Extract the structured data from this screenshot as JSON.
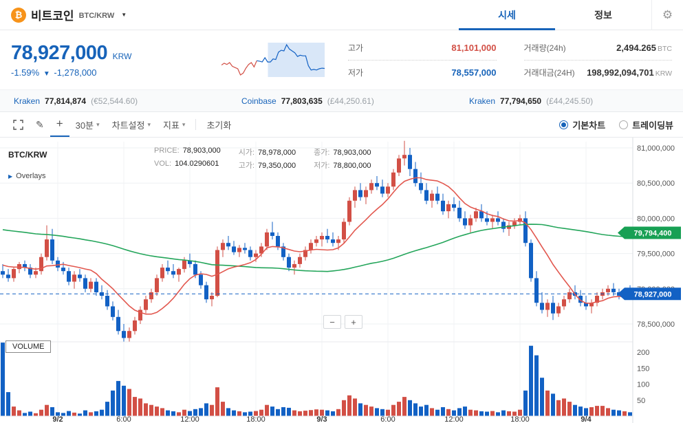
{
  "icons": {
    "bitcoin": "₿",
    "gear": "⚙",
    "dropdown_caret": "▼",
    "select_caret": "▾",
    "pencil": "✎",
    "plus": "+",
    "overlays_triangle": "▶"
  },
  "header": {
    "coin_name": "비트코인",
    "pair": "BTC/KRW",
    "tabs": [
      {
        "label": "시세"
      },
      {
        "label": "정보"
      }
    ]
  },
  "price": {
    "current": "78,927,000",
    "currency": "KRW",
    "change_percent": "-1.59%",
    "direction": "▼",
    "change_amount": "-1,278,000"
  },
  "stats": {
    "high_label": "고가",
    "high": "81,101,000",
    "low_label": "저가",
    "low": "78,557,000",
    "volume_label": "거래량(24h)",
    "volume": "2,494.265",
    "volume_unit": "BTC",
    "value_label": "거래대금(24H)",
    "value": "198,992,094,701",
    "value_unit": "KRW"
  },
  "tickers": [
    {
      "exchange": "Kraken",
      "price": "77,814,874",
      "converted": "(€52,544.60)"
    },
    {
      "exchange": "Coinbase",
      "price": "77,803,635",
      "converted": "(£44,250.61)"
    },
    {
      "exchange": "Kraken",
      "price": "77,794,650",
      "converted": "(£44,245.50)"
    }
  ],
  "toolbar": {
    "interval": "30분",
    "chart_settings": "차트설정",
    "indicators": "지표",
    "reset": "초기화",
    "chart_type_basic": "기본차트",
    "chart_type_tradingview": "트레이딩뷰",
    "zoom_out": "−",
    "zoom_in": "+"
  },
  "chart_info": {
    "pair": "BTC/KRW",
    "overlays": "Overlays",
    "price_label": "PRICE:",
    "price": "78,903,000",
    "open_label": "시가:",
    "open": "78,978,000",
    "close_label": "종가:",
    "close": "78,903,000",
    "vol_label": "VOL:",
    "vol": "104.0290601",
    "high_label": "고가:",
    "high": "79,350,000",
    "low_label": "저가:",
    "low": "78,800,000",
    "volume_pane_label": "VOLUME"
  },
  "chart_data": {
    "type": "candlestick",
    "interval": "30m",
    "price_unit": "KRW, values in thousands",
    "colors": {
      "up": "#d24f45",
      "down": "#1261c4",
      "ma_fast": "#e2574e",
      "ma_slow": "#23a55a",
      "grid": "#eef0f3",
      "axis_text": "#555"
    },
    "y_ticks": [
      [
        "81,000,000",
        81000
      ],
      [
        "80,500,000",
        80500
      ],
      [
        "80,000,000",
        80000
      ],
      [
        "79,500,000",
        79500
      ],
      [
        "79,000,000",
        79000
      ],
      [
        "78,500,000",
        78500
      ]
    ],
    "volume_ticks": [
      [
        "200",
        200
      ],
      [
        "150",
        150
      ],
      [
        "100",
        100
      ],
      [
        "50",
        50
      ]
    ],
    "x_ticks": [
      [
        "9/2",
        10
      ],
      [
        "6:00",
        22
      ],
      [
        "12:00",
        34
      ],
      [
        "18:00",
        46
      ],
      [
        "9/3",
        58
      ],
      [
        "6:00",
        70
      ],
      [
        "12:00",
        82
      ],
      [
        "18:00",
        94
      ],
      [
        "9/4",
        106
      ]
    ],
    "tags": {
      "ma": {
        "label": "79,794,400",
        "price": 79794.4,
        "color": "#18a054"
      },
      "current": {
        "label": "78,927,000",
        "price": 78927,
        "color": "#1261c4"
      }
    },
    "ma": {
      "fast_period": 10,
      "fast_start": 79350,
      "slow_period": 60,
      "slow_start": 79850
    },
    "candles": [
      [
        79250,
        79350,
        79150,
        79200,
        230
      ],
      [
        79200,
        79280,
        79100,
        79150,
        75
      ],
      [
        79150,
        79300,
        79100,
        79280,
        30
      ],
      [
        79280,
        79380,
        79220,
        79350,
        18
      ],
      [
        79350,
        79400,
        79250,
        79300,
        10
      ],
      [
        79300,
        79350,
        79150,
        79200,
        14
      ],
      [
        79200,
        79300,
        79150,
        79250,
        9
      ],
      [
        79250,
        79500,
        79200,
        79450,
        20
      ],
      [
        79450,
        79900,
        79400,
        79700,
        35
      ],
      [
        79700,
        79850,
        79350,
        79400,
        28
      ],
      [
        79400,
        79450,
        79250,
        79300,
        12
      ],
      [
        79300,
        79380,
        79200,
        79250,
        10
      ],
      [
        79250,
        79300,
        79050,
        79100,
        16
      ],
      [
        79100,
        79250,
        79000,
        79200,
        11
      ],
      [
        79200,
        79280,
        79100,
        79150,
        8
      ],
      [
        79150,
        79200,
        78950,
        79000,
        18
      ],
      [
        79000,
        79150,
        78950,
        79100,
        12
      ],
      [
        79100,
        79150,
        78900,
        78950,
        15
      ],
      [
        78950,
        79050,
        78850,
        78900,
        20
      ],
      [
        78900,
        78980,
        78700,
        78750,
        45
      ],
      [
        78750,
        78820,
        78550,
        78600,
        80
      ],
      [
        78600,
        78700,
        78350,
        78400,
        110
      ],
      [
        78400,
        78500,
        78250,
        78300,
        95
      ],
      [
        78300,
        78450,
        78250,
        78400,
        85
      ],
      [
        78400,
        78600,
        78350,
        78550,
        60
      ],
      [
        78550,
        78750,
        78500,
        78700,
        55
      ],
      [
        78700,
        78900,
        78650,
        78850,
        40
      ],
      [
        78850,
        79000,
        78800,
        78950,
        35
      ],
      [
        78950,
        79200,
        78900,
        79150,
        30
      ],
      [
        79150,
        79350,
        79100,
        79300,
        25
      ],
      [
        79300,
        79400,
        79200,
        79250,
        18
      ],
      [
        79250,
        79350,
        79150,
        79200,
        15
      ],
      [
        79200,
        79300,
        79100,
        79280,
        12
      ],
      [
        79280,
        79450,
        79230,
        79400,
        20
      ],
      [
        79400,
        79500,
        79300,
        79350,
        16
      ],
      [
        79350,
        79400,
        79150,
        79200,
        22
      ],
      [
        79200,
        79250,
        79000,
        79050,
        25
      ],
      [
        79050,
        79100,
        78800,
        78850,
        40
      ],
      [
        78850,
        78950,
        78750,
        78900,
        35
      ],
      [
        78900,
        79600,
        78880,
        79550,
        90
      ],
      [
        79550,
        79700,
        79450,
        79650,
        45
      ],
      [
        79650,
        79750,
        79550,
        79600,
        25
      ],
      [
        79600,
        79680,
        79480,
        79520,
        18
      ],
      [
        79520,
        79620,
        79450,
        79580,
        15
      ],
      [
        79580,
        79650,
        79500,
        79550,
        12
      ],
      [
        79550,
        79600,
        79400,
        79450,
        14
      ],
      [
        79450,
        79550,
        79380,
        79500,
        16
      ],
      [
        79500,
        79650,
        79450,
        79600,
        20
      ],
      [
        79600,
        79850,
        79550,
        79800,
        35
      ],
      [
        79800,
        79950,
        79700,
        79750,
        30
      ],
      [
        79750,
        79800,
        79550,
        79600,
        22
      ],
      [
        79600,
        79650,
        79400,
        79450,
        28
      ],
      [
        79450,
        79500,
        79250,
        79300,
        26
      ],
      [
        79300,
        79400,
        79200,
        79350,
        18
      ],
      [
        79350,
        79500,
        79300,
        79450,
        15
      ],
      [
        79450,
        79600,
        79400,
        79550,
        17
      ],
      [
        79550,
        79700,
        79500,
        79650,
        19
      ],
      [
        79650,
        79750,
        79600,
        79700,
        21
      ],
      [
        79700,
        79800,
        79600,
        79750,
        20
      ],
      [
        79750,
        79850,
        79650,
        79700,
        18
      ],
      [
        79700,
        79800,
        79600,
        79650,
        15
      ],
      [
        79650,
        79750,
        79550,
        79700,
        22
      ],
      [
        79700,
        80000,
        79650,
        79950,
        50
      ],
      [
        79950,
        80300,
        79900,
        80250,
        65
      ],
      [
        80250,
        80450,
        80150,
        80400,
        55
      ],
      [
        80400,
        80500,
        80250,
        80300,
        40
      ],
      [
        80300,
        80450,
        80200,
        80400,
        35
      ],
      [
        80400,
        80550,
        80350,
        80500,
        30
      ],
      [
        80500,
        80600,
        80400,
        80450,
        25
      ],
      [
        80450,
        80550,
        80300,
        80350,
        22
      ],
      [
        80350,
        80500,
        80300,
        80450,
        20
      ],
      [
        80450,
        80700,
        80400,
        80650,
        35
      ],
      [
        80650,
        80900,
        80600,
        80850,
        45
      ],
      [
        80850,
        81101,
        80750,
        80900,
        60
      ],
      [
        80900,
        81000,
        80600,
        80700,
        50
      ],
      [
        80700,
        80800,
        80450,
        80500,
        40
      ],
      [
        80500,
        80650,
        80350,
        80400,
        30
      ],
      [
        80400,
        80500,
        80200,
        80250,
        35
      ],
      [
        80250,
        80400,
        80150,
        80350,
        25
      ],
      [
        80350,
        80450,
        80200,
        80250,
        20
      ],
      [
        80250,
        80350,
        80050,
        80100,
        28
      ],
      [
        80100,
        80250,
        80000,
        80200,
        22
      ],
      [
        80200,
        80300,
        80100,
        80150,
        18
      ],
      [
        80150,
        80250,
        79950,
        80000,
        25
      ],
      [
        80000,
        80100,
        79850,
        79900,
        30
      ],
      [
        79900,
        80050,
        79800,
        80000,
        20
      ],
      [
        80000,
        80150,
        79950,
        80100,
        18
      ],
      [
        80100,
        80200,
        79950,
        80000,
        15
      ],
      [
        80000,
        80100,
        79900,
        79950,
        14
      ],
      [
        79950,
        80050,
        79850,
        80000,
        16
      ],
      [
        80000,
        80100,
        79900,
        79950,
        12
      ],
      [
        79950,
        80000,
        79800,
        79850,
        18
      ],
      [
        79850,
        79950,
        79750,
        79900,
        15
      ],
      [
        79900,
        80000,
        79850,
        79950,
        14
      ],
      [
        79950,
        80050,
        79900,
        80000,
        20
      ],
      [
        80000,
        80100,
        79600,
        79650,
        80
      ],
      [
        79650,
        79700,
        79100,
        79150,
        220
      ],
      [
        79150,
        79250,
        78750,
        78800,
        190
      ],
      [
        78800,
        78950,
        78650,
        78700,
        120
      ],
      [
        78700,
        78850,
        78600,
        78800,
        80
      ],
      [
        78800,
        78900,
        78557,
        78650,
        70
      ],
      [
        78650,
        78800,
        78600,
        78750,
        50
      ],
      [
        78750,
        78900,
        78700,
        78850,
        55
      ],
      [
        78850,
        79000,
        78800,
        78950,
        45
      ],
      [
        78950,
        79050,
        78850,
        78900,
        35
      ],
      [
        78900,
        78980,
        78750,
        78800,
        30
      ],
      [
        78800,
        78900,
        78700,
        78750,
        25
      ],
      [
        78750,
        78850,
        78650,
        78800,
        28
      ],
      [
        78800,
        78950,
        78750,
        78900,
        32
      ],
      [
        78900,
        79000,
        78850,
        78950,
        32
      ],
      [
        78950,
        79050,
        78900,
        79000,
        25
      ],
      [
        79000,
        79080,
        78900,
        78950,
        20
      ],
      [
        78950,
        79000,
        78850,
        78900,
        18
      ],
      [
        78900,
        79000,
        78870,
        78980,
        15
      ],
      [
        78980,
        79050,
        78880,
        78927,
        12
      ]
    ]
  }
}
